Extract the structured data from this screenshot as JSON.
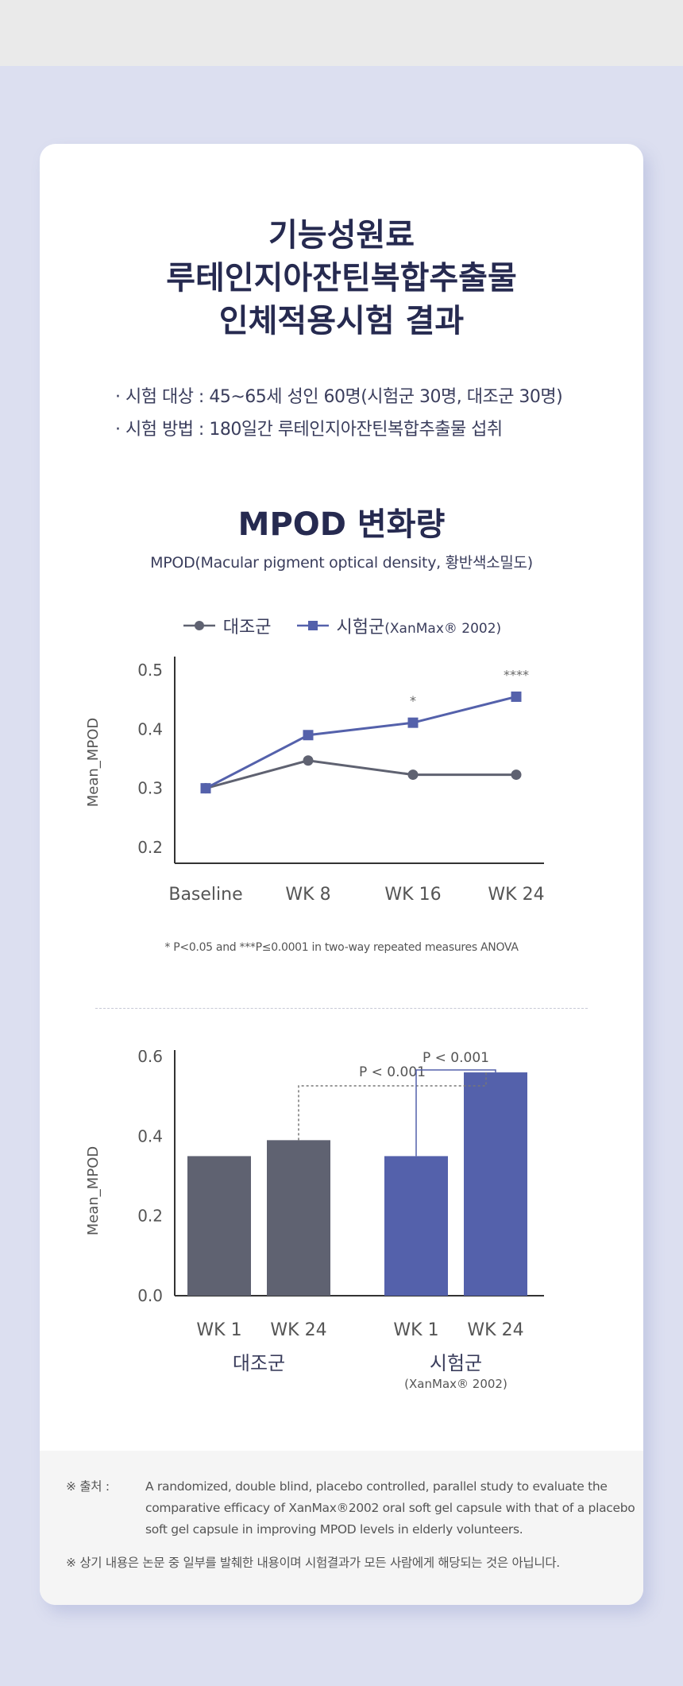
{
  "header": {
    "title_lines": [
      "기능성원료",
      "루테인지아잔틴복합추출물",
      "인체적용시험 결과"
    ],
    "info": [
      "· 시험 대상 : 45~65세 성인 60명(시험군 30명, 대조군 30명)",
      "· 시험 방법 : 180일간 루테인지아잔틴복합추출물 섭취"
    ]
  },
  "section": {
    "title": "MPOD 변화량",
    "subtitle": "MPOD(Macular pigment optical density, 황반색소밀도)"
  },
  "legend": {
    "control": "대조군",
    "test": "시험군",
    "test_note": "(XanMax® 2002)"
  },
  "colors": {
    "control": "#5f6271",
    "test": "#5461ab",
    "text": "#262a50"
  },
  "chart_data": [
    {
      "type": "line",
      "ylabel": "Mean_MPOD",
      "ylim": [
        0.2,
        0.5
      ],
      "yticks": [
        "0.5",
        "0.4",
        "0.3",
        "0.2"
      ],
      "categories": [
        "Baseline",
        "WK 8",
        "WK 16",
        "WK 24"
      ],
      "series": [
        {
          "name": "대조군",
          "values": [
            0.3,
            0.347,
            0.323,
            0.323
          ]
        },
        {
          "name": "시험군(XanMax® 2002)",
          "values": [
            0.3,
            0.39,
            0.411,
            0.455
          ]
        }
      ],
      "annotations": [
        "",
        "",
        "*",
        "****"
      ],
      "footnote": "* P<0.05 and ***P≤0.0001 in two-way repeated measures ANOVA"
    },
    {
      "type": "bar",
      "ylabel": "Mean_MPOD",
      "ylim": [
        0,
        0.6
      ],
      "yticks": [
        "0.6",
        "0.4",
        "0.2",
        "0.0"
      ],
      "groups": [
        {
          "label": "대조군",
          "sublabel": "",
          "categories": [
            "WK 1",
            "WK 24"
          ],
          "values": [
            0.35,
            0.39
          ]
        },
        {
          "label": "시험군",
          "sublabel": "(XanMax® 2002)",
          "categories": [
            "WK 1",
            "WK 24"
          ],
          "values": [
            0.35,
            0.56
          ]
        }
      ],
      "pvalues": [
        "P < 0.001",
        "P < 0.001"
      ]
    }
  ],
  "source": {
    "label": "※ 출처 :",
    "text": "A randomized,  double blind, placebo controlled,  parallel  study to evaluate the  comparative efficacy  of  XanMax®2002 oral soft  gel capsule with that of a placebo soft  gel capsule in improving MPOD levels in elderly volunteers.",
    "note": "※ 상기 내용은 논문 중 일부를 발췌한 내용이며 시험결과가 모든 사람에게 해당되는 것은 아닙니다."
  }
}
